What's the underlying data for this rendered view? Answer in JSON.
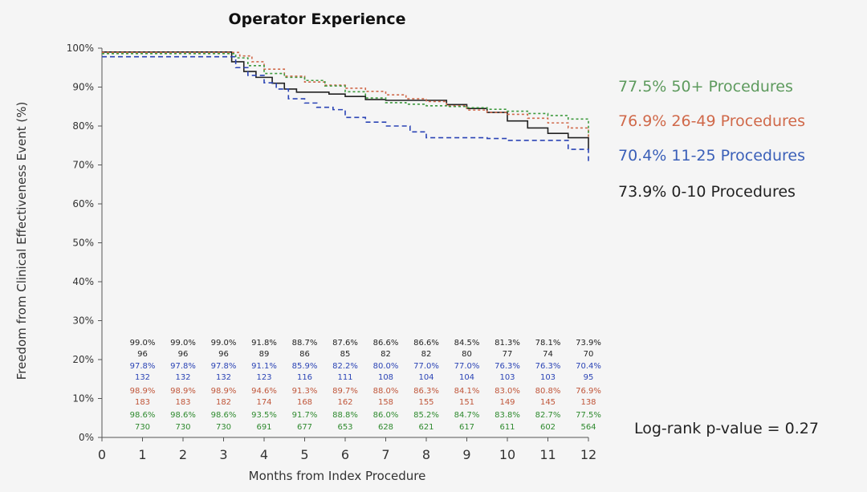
{
  "chart_data": {
    "type": "line",
    "title": "Operator Experience",
    "xlabel": "Months from Index Procedure",
    "ylabel": "Freedom from Clinical Effectiveness Event (%)",
    "xlim": [
      0,
      12
    ],
    "ylim": [
      0,
      100
    ],
    "x_ticks": [
      "0",
      "1",
      "2",
      "3",
      "4",
      "5",
      "6",
      "7",
      "8",
      "9",
      "10",
      "11",
      "12"
    ],
    "y_ticks": [
      "0%",
      "10%",
      "20%",
      "30%",
      "40%",
      "50%",
      "60%",
      "70%",
      "80%",
      "90%",
      "100%"
    ],
    "series": [
      {
        "name": "0-10 Procedures",
        "legend": "73.9% 0-10 Procedures",
        "color": "#222222",
        "dash": "none",
        "x": [
          0,
          3,
          3.2,
          3.5,
          3.8,
          4.2,
          4.5,
          4.8,
          5.2,
          5.6,
          6.0,
          6.5,
          7.0,
          7.5,
          8.0,
          8.5,
          9.0,
          9.5,
          10.0,
          10.5,
          11.0,
          11.5,
          12.0
        ],
        "y": [
          99.0,
          99.0,
          96.5,
          94.0,
          92.5,
          91.0,
          89.5,
          88.7,
          88.7,
          88.2,
          87.6,
          86.8,
          86.6,
          86.6,
          86.6,
          85.5,
          84.5,
          83.5,
          81.3,
          79.5,
          78.1,
          77.0,
          73.9
        ]
      },
      {
        "name": "11-25 Procedures",
        "legend": "70.4% 11-25 Procedures",
        "color": "#2b44b5",
        "dash": "6,4",
        "x": [
          0,
          3,
          3.3,
          3.6,
          4.0,
          4.3,
          4.6,
          5.0,
          5.3,
          5.7,
          6.0,
          6.5,
          7.0,
          7.6,
          8.0,
          8.6,
          9.0,
          9.5,
          10.0,
          10.5,
          11.0,
          11.5,
          12.0
        ],
        "y": [
          97.8,
          97.8,
          95.0,
          93.0,
          91.1,
          89.5,
          87.0,
          85.9,
          84.8,
          84.2,
          82.2,
          81.0,
          80.0,
          78.5,
          77.0,
          77.0,
          77.0,
          76.8,
          76.3,
          76.3,
          76.3,
          74.0,
          70.4
        ]
      },
      {
        "name": "26-49 Procedures",
        "legend": "76.9% 26-49 Procedures",
        "color": "#d0694a",
        "dash": "3,3",
        "x": [
          0,
          3,
          3.4,
          3.7,
          4.0,
          4.5,
          5.0,
          5.5,
          6.0,
          6.5,
          7.0,
          7.5,
          8.0,
          8.5,
          9.0,
          9.5,
          10.0,
          10.5,
          11.0,
          11.5,
          12.0
        ],
        "y": [
          98.9,
          98.9,
          98.0,
          96.5,
          94.6,
          92.8,
          91.3,
          90.5,
          89.7,
          88.9,
          88.0,
          87.0,
          86.3,
          85.2,
          84.1,
          83.5,
          83.0,
          82.0,
          80.8,
          79.5,
          76.9
        ]
      },
      {
        "name": "50+ Procedures",
        "legend": "77.5% 50+ Procedures",
        "color": "#3e9a3e",
        "dash": "3,3",
        "x": [
          0,
          3,
          3.3,
          3.6,
          4.0,
          4.5,
          5.0,
          5.5,
          6.0,
          6.5,
          7.0,
          7.5,
          8.0,
          8.5,
          9.0,
          9.5,
          10.0,
          10.5,
          11.0,
          11.5,
          12.0
        ],
        "y": [
          98.6,
          98.6,
          97.5,
          95.5,
          93.5,
          92.5,
          91.7,
          90.3,
          88.8,
          87.2,
          86.0,
          85.6,
          85.2,
          85.0,
          84.7,
          84.3,
          83.8,
          83.2,
          82.7,
          81.8,
          77.5
        ]
      }
    ],
    "risk_table": {
      "months": [
        1,
        2,
        3,
        4,
        5,
        6,
        7,
        8,
        9,
        10,
        11,
        12
      ],
      "rows": [
        {
          "group": "0-10",
          "kind": "pct",
          "color": "#222222",
          "values": [
            "99.0%",
            "99.0%",
            "99.0%",
            "91.8%",
            "88.7%",
            "87.6%",
            "86.6%",
            "86.6%",
            "84.5%",
            "81.3%",
            "78.1%",
            "73.9%"
          ]
        },
        {
          "group": "0-10",
          "kind": "n",
          "color": "#222222",
          "values": [
            "96",
            "96",
            "96",
            "89",
            "86",
            "85",
            "82",
            "82",
            "80",
            "77",
            "74",
            "70"
          ]
        },
        {
          "group": "11-25",
          "kind": "pct",
          "color": "#2b44b5",
          "values": [
            "97.8%",
            "97.8%",
            "97.8%",
            "91.1%",
            "85.9%",
            "82.2%",
            "80.0%",
            "77.0%",
            "77.0%",
            "76.3%",
            "76.3%",
            "70.4%"
          ]
        },
        {
          "group": "11-25",
          "kind": "n",
          "color": "#2b44b5",
          "values": [
            "132",
            "132",
            "132",
            "123",
            "116",
            "111",
            "108",
            "104",
            "104",
            "103",
            "103",
            "95"
          ]
        },
        {
          "group": "26-49",
          "kind": "pct",
          "color": "#c0563a",
          "values": [
            "98.9%",
            "98.9%",
            "98.9%",
            "94.6%",
            "91.3%",
            "89.7%",
            "88.0%",
            "86.3%",
            "84.1%",
            "83.0%",
            "80.8%",
            "76.9%"
          ]
        },
        {
          "group": "26-49",
          "kind": "n",
          "color": "#c0563a",
          "values": [
            "183",
            "183",
            "182",
            "174",
            "168",
            "162",
            "158",
            "155",
            "151",
            "149",
            "145",
            "138"
          ]
        },
        {
          "group": "50+",
          "kind": "pct",
          "color": "#2f8a2f",
          "values": [
            "98.6%",
            "98.6%",
            "98.6%",
            "93.5%",
            "91.7%",
            "88.8%",
            "86.0%",
            "85.2%",
            "84.7%",
            "83.8%",
            "82.7%",
            "77.5%"
          ]
        },
        {
          "group": "50+",
          "kind": "n",
          "color": "#2f8a2f",
          "values": [
            "730",
            "730",
            "730",
            "691",
            "677",
            "653",
            "628",
            "621",
            "617",
            "611",
            "602",
            "564"
          ]
        }
      ]
    },
    "annotation": "Log-rank p-value = 0.27"
  },
  "legend": [
    {
      "label": "77.5% 50+ Procedures",
      "color": "#5d9a5d"
    },
    {
      "label": "76.9% 26-49 Procedures",
      "color": "#d0694a"
    },
    {
      "label": "70.4% 11-25 Procedures",
      "color": "#3a5fb8"
    },
    {
      "label": "73.9% 0-10 Procedures",
      "color": "#222222"
    }
  ]
}
